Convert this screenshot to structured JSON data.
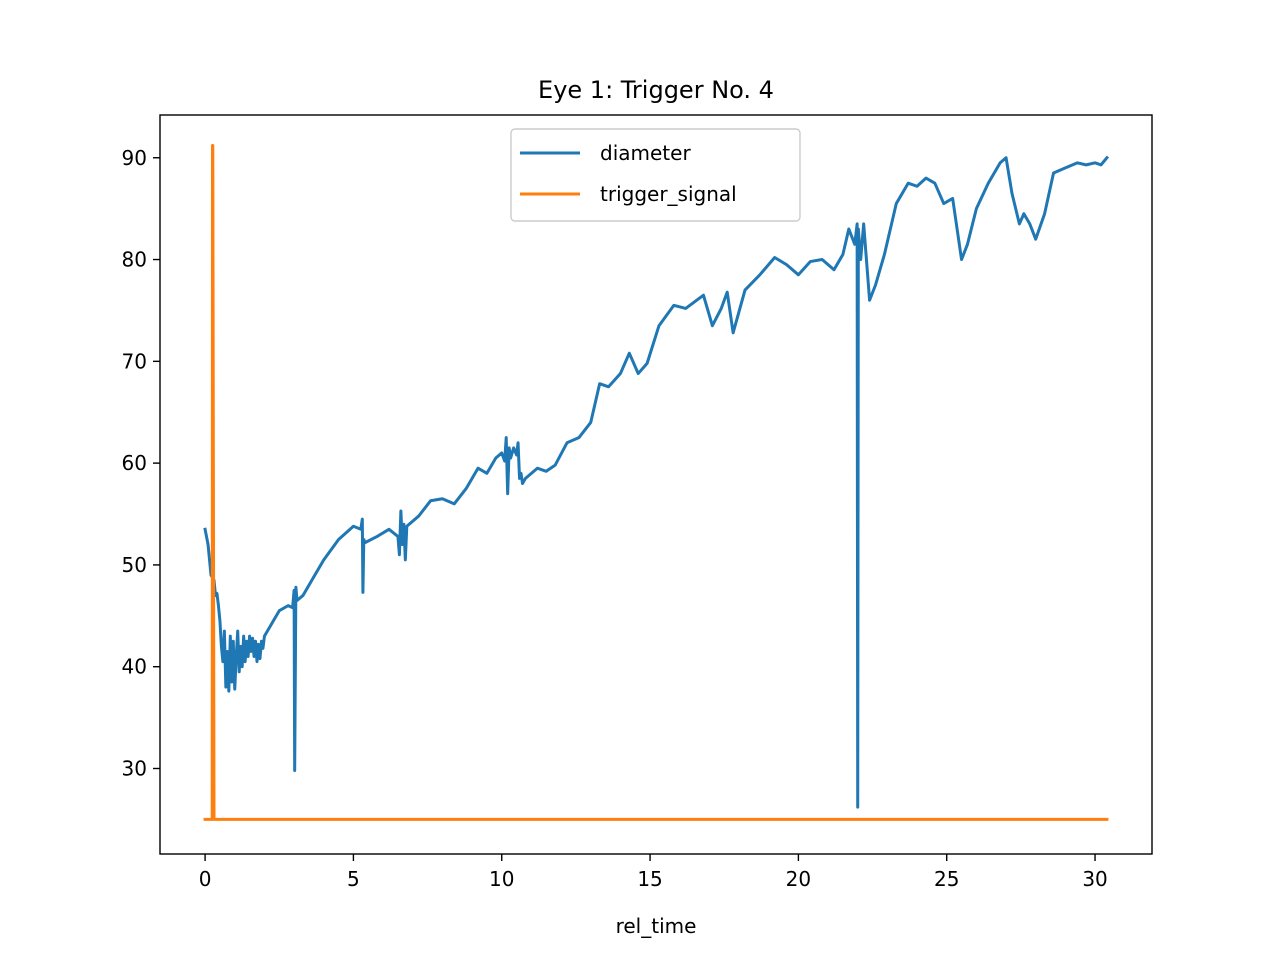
{
  "chart_data": {
    "type": "line",
    "title": "Eye 1: Trigger No. 4",
    "xlabel": "rel_time",
    "ylabel": "",
    "xlim": [
      -1.52,
      31.92
    ],
    "ylim": [
      21.6,
      94.2
    ],
    "xticks": [
      0,
      5,
      10,
      15,
      20,
      25,
      30
    ],
    "yticks": [
      30,
      40,
      50,
      60,
      70,
      80,
      90
    ],
    "xtick_labels": [
      "0",
      "5",
      "10",
      "15",
      "20",
      "25",
      "30"
    ],
    "ytick_labels": [
      "30",
      "40",
      "50",
      "60",
      "70",
      "80",
      "90"
    ],
    "grid": false,
    "legend": {
      "position": "upper-center",
      "entries": [
        "diameter",
        "trigger_signal"
      ]
    },
    "series": [
      {
        "name": "diameter",
        "color": "#1f77b4",
        "x": [
          0,
          0.1,
          0.2,
          0.3,
          0.35,
          0.4,
          0.45,
          0.5,
          0.55,
          0.6,
          0.65,
          0.7,
          0.75,
          0.8,
          0.85,
          0.9,
          0.95,
          1.0,
          1.05,
          1.1,
          1.15,
          1.2,
          1.25,
          1.3,
          1.35,
          1.4,
          1.45,
          1.5,
          1.55,
          1.6,
          1.65,
          1.7,
          1.75,
          1.8,
          1.85,
          1.9,
          1.95,
          2.0,
          2.2,
          2.5,
          2.8,
          2.95,
          3.0,
          3.02,
          3.06,
          3.1,
          3.3,
          3.6,
          4.0,
          4.5,
          5.0,
          5.25,
          5.3,
          5.32,
          5.35,
          5.4,
          5.8,
          6.2,
          6.5,
          6.55,
          6.6,
          6.65,
          6.7,
          6.75,
          6.8,
          7.2,
          7.6,
          8.0,
          8.4,
          8.8,
          9.2,
          9.5,
          9.8,
          10.0,
          10.1,
          10.15,
          10.2,
          10.25,
          10.3,
          10.4,
          10.5,
          10.55,
          10.6,
          10.65,
          10.7,
          10.8,
          11.2,
          11.5,
          11.8,
          12.2,
          12.6,
          13.0,
          13.3,
          13.6,
          14.0,
          14.3,
          14.6,
          14.9,
          15.3,
          15.8,
          16.2,
          16.8,
          17.1,
          17.4,
          17.6,
          17.8,
          18.2,
          18.7,
          19.2,
          19.6,
          20.0,
          20.4,
          20.8,
          21.2,
          21.5,
          21.7,
          21.9,
          21.98,
          22.0,
          22.02,
          22.1,
          22.2,
          22.4,
          22.6,
          22.9,
          23.3,
          23.7,
          24.0,
          24.3,
          24.6,
          24.9,
          25.2,
          25.5,
          25.7,
          26.0,
          26.4,
          26.8,
          27.0,
          27.2,
          27.45,
          27.6,
          27.8,
          28.0,
          28.3,
          28.6,
          29.0,
          29.4,
          29.7,
          30.0,
          30.2,
          30.4
        ],
        "values": [
          53.5,
          52.0,
          49.0,
          48.5,
          47.0,
          47.2,
          46.0,
          44.5,
          42.0,
          40.5,
          43.5,
          38.0,
          41.5,
          37.6,
          43.0,
          38.5,
          42.5,
          37.8,
          41.0,
          43.5,
          39.5,
          42.0,
          40.0,
          43.0,
          40.5,
          42.5,
          41.0,
          43.0,
          41.5,
          42.8,
          41.0,
          42.5,
          40.5,
          42.2,
          40.8,
          42.5,
          41.8,
          43.0,
          44.0,
          45.5,
          46.0,
          45.8,
          47.5,
          29.8,
          47.8,
          46.5,
          47.0,
          48.5,
          50.5,
          52.5,
          53.8,
          53.5,
          54.5,
          47.3,
          52.5,
          52.2,
          52.8,
          53.5,
          52.8,
          51.0,
          55.3,
          52.0,
          54.0,
          50.5,
          53.8,
          54.8,
          56.3,
          56.5,
          56.0,
          57.5,
          59.5,
          59.0,
          60.5,
          61.0,
          60.2,
          62.5,
          57.0,
          61.5,
          60.5,
          61.5,
          60.8,
          62.0,
          58.5,
          59.0,
          58.0,
          58.5,
          59.5,
          59.2,
          59.8,
          62.0,
          62.5,
          64.0,
          67.8,
          67.5,
          68.8,
          70.8,
          68.8,
          69.8,
          73.5,
          75.5,
          75.2,
          76.5,
          73.5,
          75.2,
          76.8,
          72.8,
          77.0,
          78.5,
          80.2,
          79.5,
          78.5,
          79.8,
          80.0,
          79.0,
          80.5,
          83.0,
          81.5,
          83.5,
          26.2,
          83.0,
          80.0,
          83.5,
          76.0,
          77.5,
          80.5,
          85.5,
          87.5,
          87.2,
          88.0,
          87.5,
          85.5,
          86.0,
          80.0,
          81.5,
          85.0,
          87.5,
          89.5,
          90.0,
          86.5,
          83.5,
          84.5,
          83.5,
          82.0,
          84.5,
          88.5,
          89.0,
          89.5,
          89.3,
          89.5,
          89.3,
          90.0
        ]
      },
      {
        "name": "trigger_signal",
        "color": "#ff7f0e",
        "x": [
          0,
          0.24,
          0.25,
          0.26,
          0.3,
          30.4
        ],
        "values": [
          25.0,
          25.0,
          91.2,
          91.2,
          25.0,
          25.0
        ]
      }
    ]
  }
}
